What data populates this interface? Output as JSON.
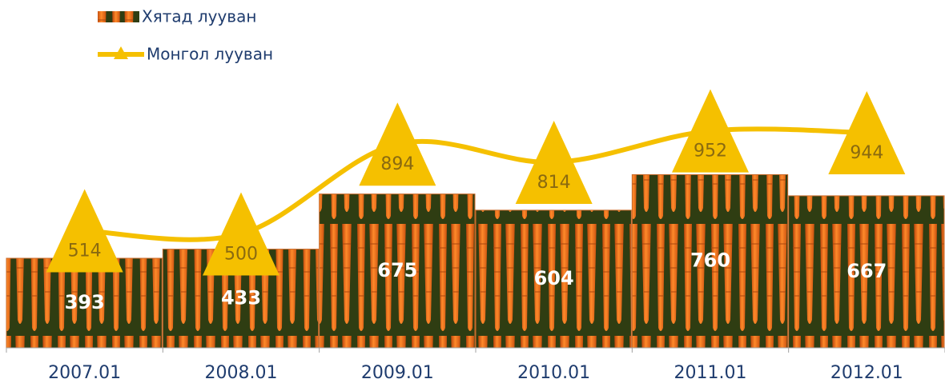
{
  "chart_data": {
    "type": "bar_line",
    "categories": [
      "2007.01",
      "2008.01",
      "2009.01",
      "2010.01",
      "2011.01",
      "2012.01"
    ],
    "series": [
      {
        "name": "Хятад лууван",
        "type": "bar",
        "color": "#f07a1e",
        "values": [
          393,
          433,
          675,
          604,
          760,
          667
        ]
      },
      {
        "name": "Монгол лууван",
        "type": "line",
        "color": "#f5c000",
        "values": [
          514,
          500,
          894,
          814,
          952,
          944
        ]
      }
    ],
    "ylim": [
      0,
      1000
    ]
  }
}
